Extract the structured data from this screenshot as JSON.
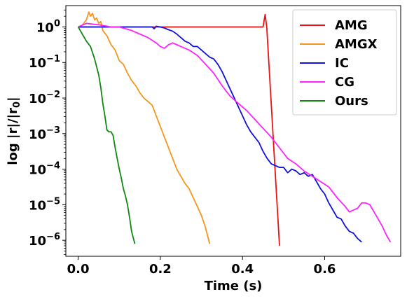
{
  "chart_data": {
    "type": "line",
    "xlabel": "Time (s)",
    "ylabel": "log |r|/|r",
    "ylabel_sub": "0",
    "ylabel_end": "|",
    "xlim": [
      -0.03,
      0.785
    ],
    "ylim_log10": [
      -6.45,
      0.6
    ],
    "log_y": true,
    "legend_position": "top-right",
    "x_ticks": [
      {
        "value": 0.0,
        "label": "0.0"
      },
      {
        "value": 0.2,
        "label": "0.2"
      },
      {
        "value": 0.4,
        "label": "0.4"
      },
      {
        "value": 0.6,
        "label": "0.6"
      }
    ],
    "y_ticks": [
      {
        "exp": 0,
        "base": "10",
        "sup": "0"
      },
      {
        "exp": -1,
        "base": "10",
        "sup": "−1"
      },
      {
        "exp": -2,
        "base": "10",
        "sup": "−2"
      },
      {
        "exp": -3,
        "base": "10",
        "sup": "−3"
      },
      {
        "exp": -4,
        "base": "10",
        "sup": "−4"
      },
      {
        "exp": -5,
        "base": "10",
        "sup": "−5"
      },
      {
        "exp": -6,
        "base": "10",
        "sup": "−6"
      }
    ],
    "series": [
      {
        "name": "AMG",
        "color": "#ee1111",
        "points": [
          [
            0.0,
            0
          ],
          [
            0.1,
            0
          ],
          [
            0.2,
            0
          ],
          [
            0.3,
            0
          ],
          [
            0.4,
            0
          ],
          [
            0.45,
            0
          ],
          [
            0.455,
            0.35
          ],
          [
            0.459,
            0
          ],
          [
            0.49,
            -6.15
          ]
        ]
      },
      {
        "name": "AMGX",
        "color": "#f5961e",
        "points": [
          [
            0.0,
            0
          ],
          [
            0.01,
            0.05
          ],
          [
            0.02,
            0.2
          ],
          [
            0.026,
            0.42
          ],
          [
            0.03,
            0.3
          ],
          [
            0.035,
            0.38
          ],
          [
            0.04,
            0.2
          ],
          [
            0.045,
            0.25
          ],
          [
            0.05,
            0.1
          ],
          [
            0.055,
            0.15
          ],
          [
            0.06,
            -0.1
          ],
          [
            0.07,
            -0.25
          ],
          [
            0.08,
            -0.5
          ],
          [
            0.09,
            -0.65
          ],
          [
            0.1,
            -0.95
          ],
          [
            0.11,
            -1.05
          ],
          [
            0.12,
            -1.3
          ],
          [
            0.13,
            -1.5
          ],
          [
            0.14,
            -1.65
          ],
          [
            0.15,
            -1.85
          ],
          [
            0.16,
            -2.0
          ],
          [
            0.17,
            -2.1
          ],
          [
            0.18,
            -2.2
          ],
          [
            0.19,
            -2.5
          ],
          [
            0.2,
            -2.8
          ],
          [
            0.21,
            -3.1
          ],
          [
            0.22,
            -3.4
          ],
          [
            0.23,
            -3.7
          ],
          [
            0.24,
            -4.0
          ],
          [
            0.25,
            -4.2
          ],
          [
            0.26,
            -4.4
          ],
          [
            0.27,
            -4.55
          ],
          [
            0.28,
            -4.8
          ],
          [
            0.29,
            -5.05
          ],
          [
            0.3,
            -5.3
          ],
          [
            0.31,
            -5.65
          ],
          [
            0.32,
            -6.1
          ]
        ]
      },
      {
        "name": "IC",
        "color": "#1111dd",
        "points": [
          [
            0.0,
            0
          ],
          [
            0.05,
            0
          ],
          [
            0.1,
            0
          ],
          [
            0.15,
            0
          ],
          [
            0.18,
            0
          ],
          [
            0.185,
            -0.05
          ],
          [
            0.19,
            0.02
          ],
          [
            0.2,
            0
          ],
          [
            0.21,
            -0.03
          ],
          [
            0.22,
            -0.08
          ],
          [
            0.23,
            -0.12
          ],
          [
            0.24,
            -0.2
          ],
          [
            0.25,
            -0.3
          ],
          [
            0.26,
            -0.4
          ],
          [
            0.27,
            -0.45
          ],
          [
            0.28,
            -0.55
          ],
          [
            0.29,
            -0.55
          ],
          [
            0.3,
            -0.65
          ],
          [
            0.31,
            -0.75
          ],
          [
            0.32,
            -0.85
          ],
          [
            0.33,
            -0.9
          ],
          [
            0.34,
            -1.05
          ],
          [
            0.35,
            -1.25
          ],
          [
            0.36,
            -1.5
          ],
          [
            0.37,
            -1.75
          ],
          [
            0.38,
            -2.0
          ],
          [
            0.39,
            -2.25
          ],
          [
            0.4,
            -2.5
          ],
          [
            0.41,
            -2.75
          ],
          [
            0.42,
            -2.95
          ],
          [
            0.43,
            -3.1
          ],
          [
            0.44,
            -3.25
          ],
          [
            0.45,
            -3.5
          ],
          [
            0.46,
            -3.7
          ],
          [
            0.47,
            -3.85
          ],
          [
            0.48,
            -3.9
          ],
          [
            0.49,
            -3.95
          ],
          [
            0.5,
            -3.95
          ],
          [
            0.51,
            -4.1
          ],
          [
            0.52,
            -4.0
          ],
          [
            0.53,
            -4.05
          ],
          [
            0.54,
            -4.15
          ],
          [
            0.55,
            -4.1
          ],
          [
            0.56,
            -4.2
          ],
          [
            0.57,
            -4.15
          ],
          [
            0.58,
            -4.35
          ],
          [
            0.59,
            -4.55
          ],
          [
            0.6,
            -4.7
          ],
          [
            0.61,
            -4.95
          ],
          [
            0.62,
            -5.15
          ],
          [
            0.63,
            -5.35
          ],
          [
            0.64,
            -5.4
          ],
          [
            0.65,
            -5.6
          ],
          [
            0.66,
            -5.75
          ],
          [
            0.67,
            -5.8
          ],
          [
            0.68,
            -5.95
          ],
          [
            0.69,
            -6.05
          ]
        ]
      },
      {
        "name": "CG",
        "color": "#ff22ff",
        "points": [
          [
            0.0,
            0
          ],
          [
            0.02,
            0.1
          ],
          [
            0.05,
            0.06
          ],
          [
            0.08,
            0.0
          ],
          [
            0.1,
            0
          ],
          [
            0.13,
            -0.1
          ],
          [
            0.15,
            -0.2
          ],
          [
            0.17,
            -0.3
          ],
          [
            0.19,
            -0.45
          ],
          [
            0.2,
            -0.55
          ],
          [
            0.21,
            -0.6
          ],
          [
            0.22,
            -0.5
          ],
          [
            0.23,
            -0.45
          ],
          [
            0.25,
            -0.55
          ],
          [
            0.27,
            -0.65
          ],
          [
            0.29,
            -0.8
          ],
          [
            0.31,
            -1.05
          ],
          [
            0.33,
            -1.3
          ],
          [
            0.35,
            -1.65
          ],
          [
            0.37,
            -1.95
          ],
          [
            0.39,
            -2.15
          ],
          [
            0.41,
            -2.35
          ],
          [
            0.43,
            -2.6
          ],
          [
            0.45,
            -2.85
          ],
          [
            0.47,
            -3.1
          ],
          [
            0.49,
            -3.4
          ],
          [
            0.51,
            -3.7
          ],
          [
            0.53,
            -3.85
          ],
          [
            0.55,
            -4.05
          ],
          [
            0.57,
            -4.2
          ],
          [
            0.59,
            -4.35
          ],
          [
            0.61,
            -4.5
          ],
          [
            0.63,
            -4.8
          ],
          [
            0.65,
            -5.05
          ],
          [
            0.66,
            -5.2
          ],
          [
            0.68,
            -5.1
          ],
          [
            0.69,
            -4.95
          ],
          [
            0.7,
            -4.95
          ],
          [
            0.71,
            -5.0
          ],
          [
            0.72,
            -5.2
          ],
          [
            0.73,
            -5.4
          ],
          [
            0.74,
            -5.6
          ],
          [
            0.75,
            -5.85
          ],
          [
            0.76,
            -6.05
          ]
        ]
      },
      {
        "name": "Ours",
        "color": "#118811",
        "points": [
          [
            0.0,
            0
          ],
          [
            0.01,
            -0.2
          ],
          [
            0.02,
            -0.4
          ],
          [
            0.03,
            -0.55
          ],
          [
            0.04,
            -0.9
          ],
          [
            0.05,
            -1.35
          ],
          [
            0.055,
            -1.7
          ],
          [
            0.06,
            -2.15
          ],
          [
            0.065,
            -2.5
          ],
          [
            0.07,
            -2.9
          ],
          [
            0.075,
            -2.95
          ],
          [
            0.08,
            -2.95
          ],
          [
            0.085,
            -3.05
          ],
          [
            0.09,
            -3.4
          ],
          [
            0.095,
            -3.7
          ],
          [
            0.1,
            -4.0
          ],
          [
            0.105,
            -4.25
          ],
          [
            0.11,
            -4.55
          ],
          [
            0.115,
            -4.75
          ],
          [
            0.12,
            -5.0
          ],
          [
            0.125,
            -5.35
          ],
          [
            0.13,
            -5.75
          ],
          [
            0.138,
            -6.1
          ]
        ]
      }
    ]
  }
}
